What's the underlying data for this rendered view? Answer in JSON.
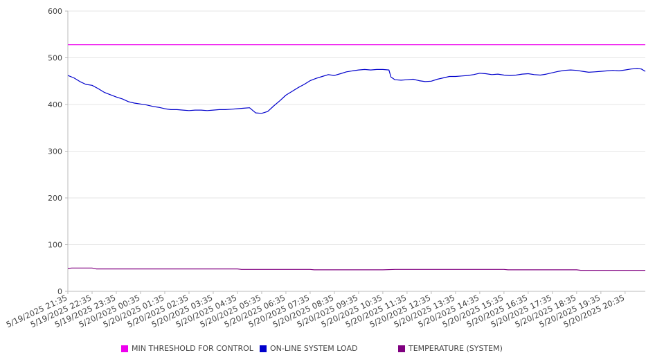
{
  "chart_data": {
    "type": "line",
    "ylim": [
      0,
      600
    ],
    "y_ticks": [
      "0",
      "100",
      "200",
      "300",
      "400",
      "500",
      "600"
    ],
    "x_ticks": [
      "5/19/2025 21:35",
      "5/19/2025 22:35",
      "5/19/2025 23:35",
      "5/20/2025 00:35",
      "5/20/2025 01:35",
      "5/20/2025 02:35",
      "5/20/2025 03:35",
      "5/20/2025 04:35",
      "5/20/2025 05:35",
      "5/20/2025 06:35",
      "5/20/2025 07:35",
      "5/20/2025 08:35",
      "5/20/2025 09:35",
      "5/20/2025 10:35",
      "5/20/2025 11:35",
      "5/20/2025 12:35",
      "5/20/2025 13:35",
      "5/20/2025 14:35",
      "5/20/2025 15:35",
      "5/20/2025 16:35",
      "5/20/2025 17:35",
      "5/20/2025 18:35",
      "5/20/2025 19:35",
      "5/20/2025 20:35"
    ],
    "x_end": "5/20/2025 21:25",
    "grid": true,
    "legend_position": "bottom",
    "series": [
      {
        "name": "MIN THRESHOLD FOR CONTROL",
        "color": "#ee00ee",
        "points": [
          [
            "5/19/2025 21:35",
            528
          ],
          [
            "5/20/2025 21:25",
            528
          ]
        ]
      },
      {
        "name": "ON-LINE SYSTEM LOAD",
        "color": "#0000cc",
        "points": [
          [
            "5/19/2025 21:35",
            462
          ],
          [
            "5/19/2025 21:50",
            457
          ],
          [
            "5/19/2025 22:05",
            449
          ],
          [
            "5/19/2025 22:20",
            443
          ],
          [
            "5/19/2025 22:35",
            441
          ],
          [
            "5/19/2025 22:50",
            434
          ],
          [
            "5/19/2025 23:05",
            426
          ],
          [
            "5/19/2025 23:20",
            421
          ],
          [
            "5/19/2025 23:35",
            416
          ],
          [
            "5/19/2025 23:50",
            412
          ],
          [
            "5/20/2025 00:05",
            406
          ],
          [
            "5/20/2025 00:20",
            403
          ],
          [
            "5/20/2025 00:35",
            401
          ],
          [
            "5/20/2025 00:50",
            399
          ],
          [
            "5/20/2025 01:05",
            396
          ],
          [
            "5/20/2025 01:20",
            394
          ],
          [
            "5/20/2025 01:35",
            391
          ],
          [
            "5/20/2025 01:50",
            389
          ],
          [
            "5/20/2025 02:05",
            389
          ],
          [
            "5/20/2025 02:20",
            388
          ],
          [
            "5/20/2025 02:35",
            387
          ],
          [
            "5/20/2025 02:50",
            388
          ],
          [
            "5/20/2025 03:05",
            388
          ],
          [
            "5/20/2025 03:20",
            387
          ],
          [
            "5/20/2025 03:35",
            388
          ],
          [
            "5/20/2025 03:50",
            389
          ],
          [
            "5/20/2025 04:05",
            389
          ],
          [
            "5/20/2025 04:20",
            390
          ],
          [
            "5/20/2025 04:35",
            391
          ],
          [
            "5/20/2025 04:50",
            392
          ],
          [
            "5/20/2025 05:05",
            393
          ],
          [
            "5/20/2025 05:20",
            382
          ],
          [
            "5/20/2025 05:35",
            381
          ],
          [
            "5/20/2025 05:50",
            385
          ],
          [
            "5/20/2025 06:05",
            397
          ],
          [
            "5/20/2025 06:20",
            408
          ],
          [
            "5/20/2025 06:35",
            420
          ],
          [
            "5/20/2025 06:50",
            428
          ],
          [
            "5/20/2025 07:05",
            436
          ],
          [
            "5/20/2025 07:20",
            443
          ],
          [
            "5/20/2025 07:35",
            451
          ],
          [
            "5/20/2025 07:50",
            456
          ],
          [
            "5/20/2025 08:05",
            460
          ],
          [
            "5/20/2025 08:20",
            464
          ],
          [
            "5/20/2025 08:35",
            462
          ],
          [
            "5/20/2025 08:50",
            466
          ],
          [
            "5/20/2025 09:05",
            470
          ],
          [
            "5/20/2025 09:20",
            472
          ],
          [
            "5/20/2025 09:35",
            474
          ],
          [
            "5/20/2025 09:50",
            475
          ],
          [
            "5/20/2025 10:05",
            474
          ],
          [
            "5/20/2025 10:20",
            475
          ],
          [
            "5/20/2025 10:35",
            475
          ],
          [
            "5/20/2025 10:50",
            474
          ],
          [
            "5/20/2025 10:55",
            459
          ],
          [
            "5/20/2025 11:05",
            453
          ],
          [
            "5/20/2025 11:20",
            452
          ],
          [
            "5/20/2025 11:35",
            453
          ],
          [
            "5/20/2025 11:50",
            454
          ],
          [
            "5/20/2025 12:05",
            451
          ],
          [
            "5/20/2025 12:20",
            449
          ],
          [
            "5/20/2025 12:35",
            450
          ],
          [
            "5/20/2025 12:50",
            454
          ],
          [
            "5/20/2025 13:05",
            457
          ],
          [
            "5/20/2025 13:20",
            460
          ],
          [
            "5/20/2025 13:35",
            460
          ],
          [
            "5/20/2025 13:50",
            461
          ],
          [
            "5/20/2025 14:05",
            462
          ],
          [
            "5/20/2025 14:20",
            464
          ],
          [
            "5/20/2025 14:35",
            467
          ],
          [
            "5/20/2025 14:50",
            466
          ],
          [
            "5/20/2025 15:05",
            464
          ],
          [
            "5/20/2025 15:20",
            465
          ],
          [
            "5/20/2025 15:35",
            463
          ],
          [
            "5/20/2025 15:50",
            462
          ],
          [
            "5/20/2025 16:05",
            463
          ],
          [
            "5/20/2025 16:20",
            465
          ],
          [
            "5/20/2025 16:35",
            466
          ],
          [
            "5/20/2025 16:50",
            464
          ],
          [
            "5/20/2025 17:05",
            463
          ],
          [
            "5/20/2025 17:20",
            465
          ],
          [
            "5/20/2025 17:35",
            468
          ],
          [
            "5/20/2025 17:50",
            471
          ],
          [
            "5/20/2025 18:05",
            473
          ],
          [
            "5/20/2025 18:20",
            474
          ],
          [
            "5/20/2025 18:35",
            473
          ],
          [
            "5/20/2025 18:50",
            471
          ],
          [
            "5/20/2025 19:05",
            469
          ],
          [
            "5/20/2025 19:20",
            470
          ],
          [
            "5/20/2025 19:35",
            471
          ],
          [
            "5/20/2025 19:50",
            472
          ],
          [
            "5/20/2025 20:05",
            473
          ],
          [
            "5/20/2025 20:20",
            472
          ],
          [
            "5/20/2025 20:35",
            474
          ],
          [
            "5/20/2025 20:50",
            476
          ],
          [
            "5/20/2025 21:05",
            477
          ],
          [
            "5/20/2025 21:15",
            476
          ],
          [
            "5/20/2025 21:25",
            471
          ]
        ]
      },
      {
        "name": "TEMPERATURE (SYSTEM)",
        "color": "#800080",
        "points": [
          [
            "5/19/2025 21:35",
            49
          ],
          [
            "5/19/2025 21:45",
            50
          ],
          [
            "5/19/2025 22:35",
            50
          ],
          [
            "5/19/2025 22:45",
            48
          ],
          [
            "5/20/2025 04:35",
            48
          ],
          [
            "5/20/2025 04:45",
            47
          ],
          [
            "5/20/2025 06:35",
            47
          ],
          [
            "5/20/2025 07:35",
            47
          ],
          [
            "5/20/2025 07:45",
            46
          ],
          [
            "5/20/2025 08:35",
            46
          ],
          [
            "5/20/2025 10:35",
            46
          ],
          [
            "5/20/2025 11:05",
            47
          ],
          [
            "5/20/2025 15:35",
            47
          ],
          [
            "5/20/2025 15:45",
            46
          ],
          [
            "5/20/2025 18:35",
            46
          ],
          [
            "5/20/2025 18:45",
            45
          ],
          [
            "5/20/2025 21:25",
            45
          ]
        ]
      }
    ]
  }
}
